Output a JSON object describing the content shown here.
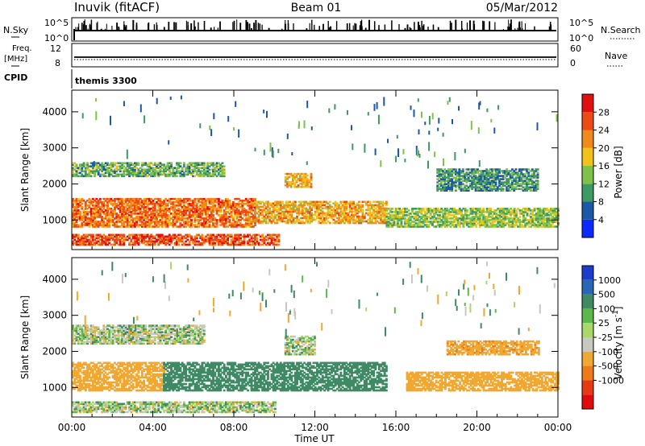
{
  "header": {
    "station": "Inuvik (fitACF)",
    "beam": "Beam 01",
    "date": "05/Mar/2012"
  },
  "top_panels": {
    "nsky_label": "N.Sky",
    "nsky_ticks": [
      "10^5",
      "10^0"
    ],
    "nsearch_label": "N.Search",
    "nsearch_ticks": [
      "10^5",
      "10^0"
    ],
    "freq_label_1": "Freq.",
    "freq_label_2": "[MHz]",
    "freq_ticks": [
      "12",
      "8"
    ],
    "nave_label": "Nave",
    "nave_ticks": [
      "60",
      "0"
    ],
    "cpid_label": "CPID",
    "cpid_value": "themis 3300"
  },
  "chart_data": [
    {
      "type": "heatmap",
      "title": "",
      "xlabel": "",
      "ylabel": "Slant Range [km]",
      "xlim": [
        0,
        24
      ],
      "ylim": [
        180,
        4600
      ],
      "xticks": [
        "00:00",
        "04:00",
        "08:00",
        "12:00",
        "16:00",
        "20:00",
        "00:00"
      ],
      "yticks": [
        "1000",
        "2000",
        "3000",
        "4000"
      ],
      "colorbar": {
        "label": "Power [dB]",
        "ticks": [
          "4",
          "8",
          "12",
          "16",
          "20",
          "24",
          "28"
        ],
        "colors": [
          "#0a2bff",
          "#1c58a8",
          "#3d9a62",
          "#7fc24a",
          "#f2c21a",
          "#f08a1a",
          "#ee4a14",
          "#e01010"
        ]
      },
      "bands": [
        {
          "range_km": [
            300,
            600
          ],
          "t_start": 0.0,
          "t_end": 10.2,
          "value_db": 26
        },
        {
          "range_km": [
            800,
            1600
          ],
          "t_start": 0.0,
          "t_end": 9.0,
          "value_db": 24
        },
        {
          "range_km": [
            900,
            1500
          ],
          "t_start": 9.0,
          "t_end": 15.5,
          "value_db": 20
        },
        {
          "range_km": [
            800,
            1300
          ],
          "t_start": 15.5,
          "t_end": 24.0,
          "value_db": 14
        },
        {
          "range_km": [
            2200,
            2600
          ],
          "t_start": 0.0,
          "t_end": 7.5,
          "value_db": 12
        },
        {
          "range_km": [
            1900,
            2300
          ],
          "t_start": 10.5,
          "t_end": 11.8,
          "value_db": 20
        },
        {
          "range_km": [
            1800,
            2400
          ],
          "t_start": 18.0,
          "t_end": 23.0,
          "value_db": 10
        }
      ]
    },
    {
      "type": "heatmap",
      "title": "",
      "xlabel": "Time UT",
      "ylabel": "Slant Range [km]",
      "xlim": [
        0,
        24
      ],
      "ylim": [
        180,
        4600
      ],
      "xticks": [
        "00:00",
        "04:00",
        "08:00",
        "12:00",
        "16:00",
        "20:00",
        "00:00"
      ],
      "yticks": [
        "1000",
        "2000",
        "3000",
        "4000"
      ],
      "colorbar": {
        "label": "Velocity [m s^-1]",
        "ticks": [
          "1000",
          "500",
          "100",
          "25",
          "-25",
          "-100",
          "-500",
          "-1000"
        ],
        "colors": [
          "#1e3ccc",
          "#2a66b8",
          "#3f8a64",
          "#5bb84a",
          "#a9d86a",
          "#c8c8c0",
          "#f0a830",
          "#ef7a1a",
          "#e83a12",
          "#e00a0a"
        ]
      },
      "bands": [
        {
          "range_km": [
            300,
            600
          ],
          "t_start": 0.0,
          "t_end": 10.0,
          "value_ms": 0
        },
        {
          "range_km": [
            900,
            1700
          ],
          "t_start": 0.0,
          "t_end": 4.5,
          "value_ms": -300
        },
        {
          "range_km": [
            900,
            1700
          ],
          "t_start": 4.5,
          "t_end": 15.5,
          "value_ms": 300
        },
        {
          "range_km": [
            900,
            1400
          ],
          "t_start": 16.5,
          "t_end": 24.0,
          "value_ms": -300
        },
        {
          "range_km": [
            2200,
            2700
          ],
          "t_start": 0.0,
          "t_end": 6.5,
          "value_ms": 0
        },
        {
          "range_km": [
            1900,
            2400
          ],
          "t_start": 10.5,
          "t_end": 12.0,
          "value_ms": 0
        },
        {
          "range_km": [
            1900,
            2300
          ],
          "t_start": 18.5,
          "t_end": 23.0,
          "value_ms": -400
        }
      ]
    }
  ],
  "axis": {
    "time_label": "Time UT"
  }
}
